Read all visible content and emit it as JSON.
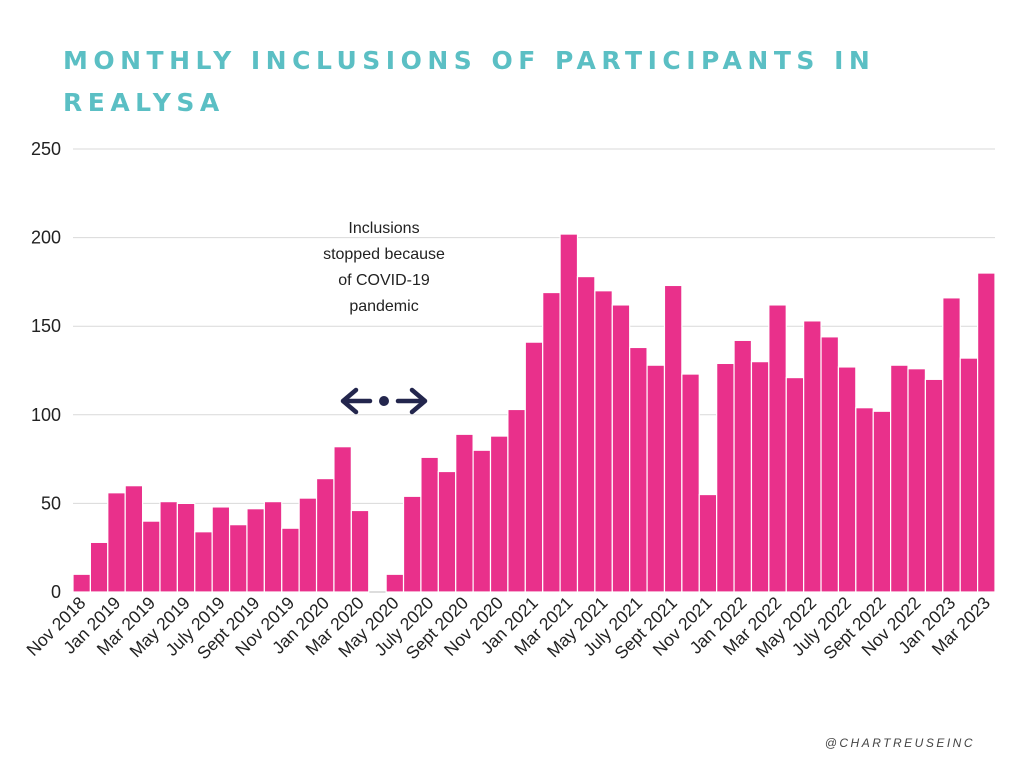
{
  "title": "MONTHLY INCLUSIONS OF PARTICIPANTS IN REALYSA",
  "annotation": "Inclusions stopped because of COVID-19 pandemic",
  "credit": "@CHARTREUSEINC",
  "colors": {
    "bar": "#e9308b",
    "title": "#5bbfc4",
    "arrow": "#23264d",
    "grid": "#d9d9d9"
  },
  "chart_data": {
    "type": "bar",
    "title": "MONTHLY INCLUSIONS OF PARTICIPANTS IN REALYSA",
    "xlabel": "",
    "ylabel": "",
    "ylim": [
      0,
      250
    ],
    "yticks": [
      0,
      50,
      100,
      150,
      200,
      250
    ],
    "grid": true,
    "categories": [
      "Nov 2018",
      "Dec 2018",
      "Jan 2019",
      "Feb 2019",
      "Mar 2019",
      "Apr 2019",
      "May 2019",
      "Jun 2019",
      "July 2019",
      "Aug 2019",
      "Sept 2019",
      "Oct 2019",
      "Nov 2019",
      "Dec 2019",
      "Jan 2020",
      "Feb 2020",
      "Mar 2020",
      "Apr 2020",
      "May 2020",
      "Jun 2020",
      "July 2020",
      "Aug 2020",
      "Sept 2020",
      "Oct 2020",
      "Nov 2020",
      "Dec 2020",
      "Jan 2021",
      "Feb 2021",
      "Mar 2021",
      "Apr 2021",
      "May 2021",
      "Jun 2021",
      "July 2021",
      "Aug 2021",
      "Sept 2021",
      "Oct 2021",
      "Nov 2021",
      "Dec 2021",
      "Jan 2022",
      "Feb 2022",
      "Mar 2022",
      "Apr 2022",
      "May 2022",
      "Jun 2022",
      "July 2022",
      "Aug 2022",
      "Sept 2022",
      "Oct 2022",
      "Nov 2022",
      "Dec 2022",
      "Jan 2023",
      "Feb 2023",
      "Mar 2023"
    ],
    "tick_labels": [
      "Nov 2018",
      "Jan 2019",
      "Mar 2019",
      "May 2019",
      "July 2019",
      "Sept 2019",
      "Nov 2019",
      "Jan 2020",
      "Mar 2020",
      "May 2020",
      "July 2020",
      "Sept 2020",
      "Nov 2020",
      "Jan 2021",
      "Mar 2021",
      "May 2021",
      "July 2021",
      "Sept 2021",
      "Nov 2021",
      "Jan 2022",
      "Mar 2022",
      "May 2022",
      "July 2022",
      "Sept 2022",
      "Nov 2022",
      "Jan 2023",
      "Mar 2023"
    ],
    "values": [
      10,
      28,
      56,
      60,
      40,
      51,
      50,
      34,
      48,
      38,
      47,
      51,
      36,
      53,
      64,
      82,
      46,
      0,
      10,
      54,
      76,
      68,
      89,
      80,
      88,
      103,
      141,
      169,
      202,
      178,
      170,
      162,
      138,
      128,
      173,
      123,
      55,
      129,
      142,
      130,
      162,
      121,
      153,
      144,
      127,
      104,
      102,
      128,
      126,
      120,
      166,
      132,
      180
    ]
  }
}
